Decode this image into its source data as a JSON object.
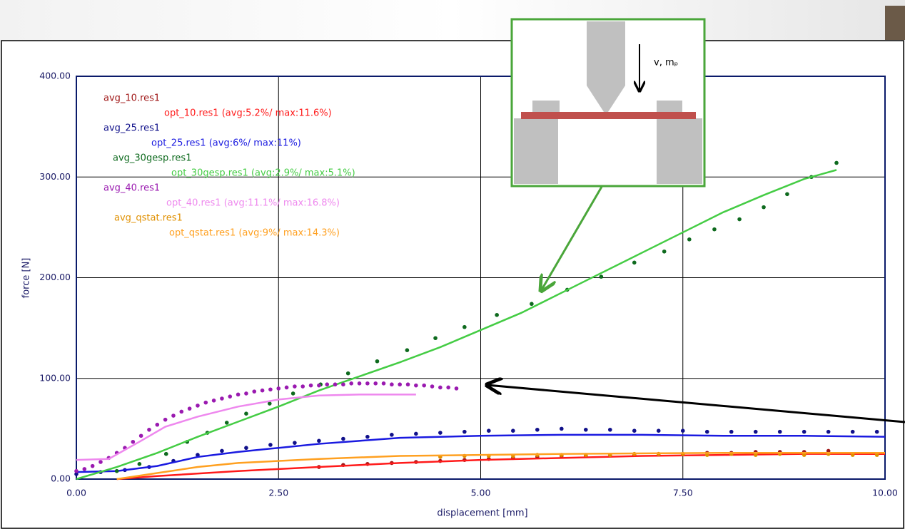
{
  "chart_data": {
    "type": "line",
    "xlabel": "displacement [mm]",
    "ylabel": "force [N]",
    "xlim": [
      0,
      10
    ],
    "ylim": [
      0,
      400
    ],
    "xticks": [
      {
        "value": 0,
        "label": "0.00"
      },
      {
        "value": 2.5,
        "label": "2.50"
      },
      {
        "value": 5,
        "label": "5.00"
      },
      {
        "value": 7.5,
        "label": "7.50"
      },
      {
        "value": 10,
        "label": "10.00"
      }
    ],
    "yticks": [
      {
        "value": 0,
        "label": "0.00"
      },
      {
        "value": 100,
        "label": "100.00"
      },
      {
        "value": 200,
        "label": "200.00"
      },
      {
        "value": 300,
        "label": "300.00"
      },
      {
        "value": 400,
        "label": "400.00"
      }
    ],
    "grid": true,
    "legend": "upper left",
    "inset_label": "v, mₚ",
    "series": [
      {
        "name": "avg_10.res1",
        "color": "#a01818",
        "mode": "markers",
        "x": [
          3.0,
          3.3,
          3.6,
          3.9,
          4.2,
          4.5,
          4.8,
          5.1,
          5.4,
          5.7,
          6.0,
          6.3,
          6.6,
          6.9,
          7.2,
          7.5,
          7.8,
          8.1,
          8.4,
          8.7,
          9.0,
          9.3
        ],
        "values": [
          12,
          14,
          15,
          16,
          17,
          18,
          19,
          20,
          21,
          22,
          23,
          23,
          24,
          24,
          25,
          25,
          26,
          26,
          27,
          27,
          27,
          28
        ]
      },
      {
        "name": "opt_10.res1 (avg:5.2%/ max:11.6%)",
        "color": "#ff1a1a",
        "mode": "lines",
        "x": [
          0.5,
          1,
          2,
          3,
          4,
          5,
          6,
          7,
          8,
          9,
          10
        ],
        "values": [
          0,
          3,
          8,
          12,
          16,
          19,
          21,
          23,
          24,
          25,
          25
        ]
      },
      {
        "name": "avg_25.res1",
        "color": "#10108a",
        "mode": "markers",
        "x": [
          0,
          0.3,
          0.6,
          0.9,
          1.2,
          1.5,
          1.8,
          2.1,
          2.4,
          2.7,
          3.0,
          3.3,
          3.6,
          3.9,
          4.2,
          4.5,
          4.8,
          5.1,
          5.4,
          5.7,
          6.0,
          6.3,
          6.6,
          6.9,
          7.2,
          7.5,
          7.8,
          8.1,
          8.4,
          8.7,
          9.0,
          9.3,
          9.6,
          9.9
        ],
        "values": [
          5,
          7,
          9,
          12,
          18,
          24,
          28,
          31,
          34,
          36,
          38,
          40,
          42,
          44,
          45,
          46,
          47,
          48,
          48,
          49,
          50,
          49,
          49,
          48,
          48,
          48,
          47,
          47,
          47,
          47,
          47,
          47,
          47,
          47
        ]
      },
      {
        "name": "opt_25.res1 (avg:6%/ max:11%)",
        "color": "#1a1ae0",
        "mode": "lines",
        "x": [
          0,
          0.5,
          1,
          1.5,
          2,
          2.5,
          3,
          3.5,
          4,
          5,
          6,
          7,
          8,
          9,
          10
        ],
        "values": [
          7,
          8,
          13,
          22,
          27,
          31,
          35,
          38,
          41,
          43,
          44,
          44,
          43,
          43,
          42
        ]
      },
      {
        "name": "avg_30gesp.res1",
        "color": "#0e6a1e",
        "mode": "markers",
        "x": [
          0.5,
          0.78,
          1.11,
          1.37,
          1.62,
          1.86,
          2.1,
          2.39,
          2.68,
          3.02,
          3.36,
          3.72,
          4.09,
          4.44,
          4.8,
          5.2,
          5.63,
          6.07,
          6.49,
          6.9,
          7.27,
          7.58,
          7.89,
          8.2,
          8.5,
          8.79,
          9.09,
          9.4
        ],
        "values": [
          8,
          15,
          25,
          37,
          46,
          56,
          65,
          75,
          85,
          94,
          105,
          117,
          128,
          140,
          151,
          163,
          174,
          188,
          201,
          215,
          226,
          238,
          248,
          258,
          270,
          283,
          300,
          314
        ]
      },
      {
        "name": "opt_30gesp.res1 (avg:2.9%/ max:5.1%)",
        "color": "#44cc44",
        "mode": "lines",
        "x": [
          0,
          0.5,
          1,
          1.5,
          2,
          2.5,
          3,
          3.5,
          4,
          4.5,
          5,
          5.5,
          6,
          6.5,
          7,
          7.5,
          8,
          8.5,
          9,
          9.4
        ],
        "values": [
          0,
          12,
          26,
          42,
          57,
          72,
          88,
          102,
          116,
          131,
          148,
          165,
          185,
          205,
          225,
          245,
          265,
          282,
          298,
          307
        ]
      },
      {
        "name": "avg_40.res1",
        "color": "#9a1ab0",
        "mode": "markers",
        "x": [
          0,
          0.1,
          0.2,
          0.3,
          0.4,
          0.5,
          0.6,
          0.7,
          0.8,
          0.9,
          1.0,
          1.1,
          1.2,
          1.3,
          1.4,
          1.5,
          1.6,
          1.7,
          1.8,
          1.9,
          2.0,
          2.1,
          2.2,
          2.3,
          2.4,
          2.5,
          2.6,
          2.7,
          2.8,
          2.9,
          3.0,
          3.1,
          3.2,
          3.3,
          3.4,
          3.5,
          3.6,
          3.7,
          3.8,
          3.9,
          4.0,
          4.1,
          4.2,
          4.3,
          4.4,
          4.5,
          4.6,
          4.7
        ],
        "values": [
          8,
          10,
          13,
          17,
          21,
          26,
          31,
          37,
          43,
          49,
          54,
          59,
          63,
          67,
          70,
          73,
          76,
          78,
          80,
          82,
          84,
          85,
          87,
          88,
          89,
          90,
          91,
          92,
          92,
          93,
          93,
          94,
          94,
          94,
          95,
          95,
          95,
          95,
          95,
          94,
          94,
          94,
          93,
          93,
          92,
          91,
          91,
          90
        ]
      },
      {
        "name": "opt_40.res1 (avg:11.1%/ max:16.8%)",
        "color": "#ee88ee",
        "mode": "lines",
        "x": [
          0,
          0.4,
          0.8,
          1.1,
          1.5,
          2,
          2.5,
          3,
          3.5,
          4.2
        ],
        "values": [
          19,
          20,
          38,
          52,
          62,
          72,
          79,
          83,
          84,
          84
        ]
      },
      {
        "name": "avg_qstat.res1",
        "color": "#e09000",
        "mode": "markers",
        "x": [
          4.5,
          4.8,
          5.1,
          5.4,
          5.7,
          6.0,
          6.3,
          6.6,
          6.9,
          7.2,
          7.5,
          7.8,
          8.1,
          8.4,
          8.7,
          9.0,
          9.3,
          9.6,
          9.9
        ],
        "values": [
          22,
          23,
          23,
          23,
          24,
          24,
          24,
          24,
          25,
          25,
          25,
          24,
          25,
          24,
          25,
          24,
          25,
          24,
          24
        ]
      },
      {
        "name": "opt_qstat.res1 (avg:9%/ max:14.3%)",
        "color": "#ffa020",
        "mode": "lines",
        "x": [
          0.5,
          1,
          1.5,
          2,
          3,
          4,
          5,
          6,
          8,
          10
        ],
        "values": [
          0,
          6,
          12,
          16,
          20,
          23,
          24,
          25,
          26,
          26
        ]
      }
    ]
  }
}
